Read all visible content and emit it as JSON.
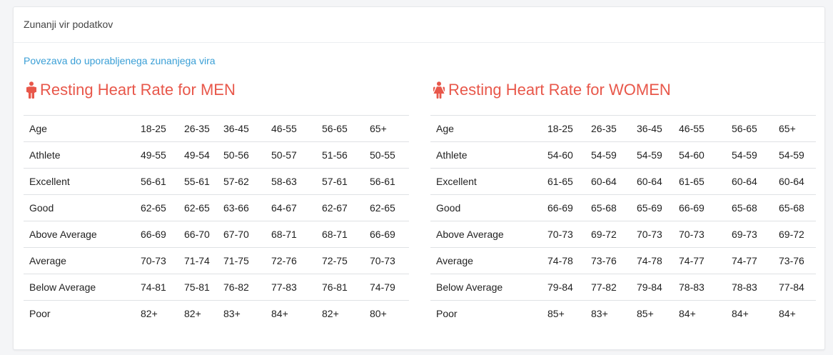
{
  "header": {
    "title": "Zunanji vir podatkov"
  },
  "link": {
    "label": "Povezava do uporabljenega zunanjega vira"
  },
  "colors": {
    "accent": "#e8574a",
    "link": "#3a9fd6"
  },
  "men": {
    "title": "Resting Heart Rate for MEN",
    "icon": "male-icon",
    "rows": [
      {
        "label": "Age",
        "values": [
          "18-25",
          "26-35",
          "36-45",
          "46-55",
          "56-65",
          "65+"
        ]
      },
      {
        "label": "Athlete",
        "values": [
          "49-55",
          "49-54",
          "50-56",
          "50-57",
          "51-56",
          "50-55"
        ]
      },
      {
        "label": "Excellent",
        "values": [
          "56-61",
          "55-61",
          "57-62",
          "58-63",
          "57-61",
          "56-61"
        ]
      },
      {
        "label": "Good",
        "values": [
          "62-65",
          "62-65",
          "63-66",
          "64-67",
          "62-67",
          "62-65"
        ]
      },
      {
        "label": "Above Average",
        "values": [
          "66-69",
          "66-70",
          "67-70",
          "68-71",
          "68-71",
          "66-69"
        ]
      },
      {
        "label": "Average",
        "values": [
          "70-73",
          "71-74",
          "71-75",
          "72-76",
          "72-75",
          "70-73"
        ]
      },
      {
        "label": "Below Average",
        "values": [
          "74-81",
          "75-81",
          "76-82",
          "77-83",
          "76-81",
          "74-79"
        ]
      },
      {
        "label": "Poor",
        "values": [
          "82+",
          "82+",
          "83+",
          "84+",
          "82+",
          "80+"
        ]
      }
    ]
  },
  "women": {
    "title": "Resting Heart Rate for WOMEN",
    "icon": "female-icon",
    "rows": [
      {
        "label": "Age",
        "values": [
          "18-25",
          "26-35",
          "36-45",
          "46-55",
          "56-65",
          "65+"
        ]
      },
      {
        "label": "Athlete",
        "values": [
          "54-60",
          "54-59",
          "54-59",
          "54-60",
          "54-59",
          "54-59"
        ]
      },
      {
        "label": "Excellent",
        "values": [
          "61-65",
          "60-64",
          "60-64",
          "61-65",
          "60-64",
          "60-64"
        ]
      },
      {
        "label": "Good",
        "values": [
          "66-69",
          "65-68",
          "65-69",
          "66-69",
          "65-68",
          "65-68"
        ]
      },
      {
        "label": "Above Average",
        "values": [
          "70-73",
          "69-72",
          "70-73",
          "70-73",
          "69-73",
          "69-72"
        ]
      },
      {
        "label": "Average",
        "values": [
          "74-78",
          "73-76",
          "74-78",
          "74-77",
          "74-77",
          "73-76"
        ]
      },
      {
        "label": "Below Average",
        "values": [
          "79-84",
          "77-82",
          "79-84",
          "78-83",
          "78-83",
          "77-84"
        ]
      },
      {
        "label": "Poor",
        "values": [
          "85+",
          "83+",
          "85+",
          "84+",
          "84+",
          "84+"
        ]
      }
    ]
  }
}
